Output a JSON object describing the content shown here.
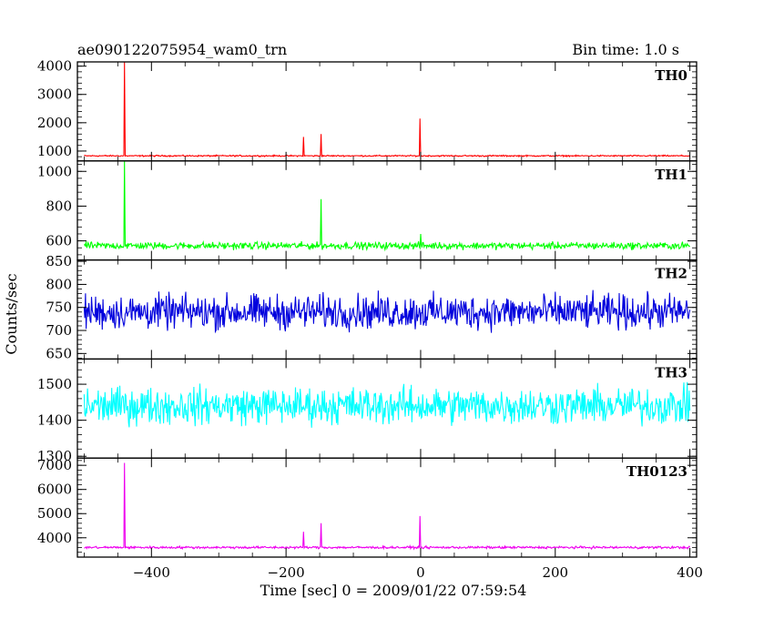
{
  "header": {
    "title": "ae090122075954_wam0_trn",
    "bin_time": "Bin time: 1.0 s"
  },
  "chart_data": {
    "type": "line",
    "xlabel": "Time [sec] 0 = 2009/01/22 07:59:54",
    "ylabel": "Counts/sec",
    "xlim": [
      -510,
      410
    ],
    "x_ticks": [
      -400,
      -200,
      0,
      200,
      400
    ],
    "x_tick_labels": [
      "−400",
      "−200",
      "0",
      "200",
      "400"
    ],
    "data_range": [
      -500,
      400
    ],
    "grid": false,
    "panels": [
      {
        "name": "TH0",
        "color": "#ff0000",
        "ylim": [
          650,
          4150
        ],
        "y_ticks": [
          1000,
          2000,
          3000,
          4000
        ],
        "y_tick_labels": [
          "1000",
          "2000",
          "3000",
          "4000"
        ],
        "baseline": 830,
        "noise": 35,
        "spikes": [
          {
            "x": -440,
            "y": 4150
          },
          {
            "x": -174,
            "y": 1500
          },
          {
            "x": -148,
            "y": 1600
          },
          {
            "x": -1,
            "y": 2150
          }
        ]
      },
      {
        "name": "TH1",
        "color": "#00ff00",
        "ylim": [
          490,
          1060
        ],
        "y_ticks": [
          600,
          800,
          1000
        ],
        "y_tick_labels": [
          "600",
          "800",
          "1000"
        ],
        "baseline": 572,
        "noise": 30,
        "spikes": [
          {
            "x": -440,
            "y": 1060
          },
          {
            "x": -148,
            "y": 840
          },
          {
            "x": 0,
            "y": 640
          }
        ]
      },
      {
        "name": "TH2",
        "color": "#0000dd",
        "ylim": [
          638,
          853
        ],
        "y_ticks": [
          650,
          700,
          750,
          800,
          850
        ],
        "y_tick_labels": [
          "650",
          "700",
          "750",
          "800",
          "850"
        ],
        "baseline": 740,
        "noise": 55,
        "spikes": []
      },
      {
        "name": "TH3",
        "color": "#00ffff",
        "ylim": [
          1295,
          1570
        ],
        "y_ticks": [
          1300,
          1400,
          1500
        ],
        "y_tick_labels": [
          "1300",
          "1400",
          "1500"
        ],
        "baseline": 1440,
        "noise": 75,
        "spikes": []
      },
      {
        "name": "TH0123",
        "color": "#ee00ee",
        "ylim": [
          3200,
          7300
        ],
        "y_ticks": [
          4000,
          5000,
          6000,
          7000
        ],
        "y_tick_labels": [
          "4000",
          "5000",
          "6000",
          "7000"
        ],
        "baseline": 3600,
        "noise": 70,
        "spikes": [
          {
            "x": -440,
            "y": 7100
          },
          {
            "x": -174,
            "y": 4250
          },
          {
            "x": -148,
            "y": 4600
          },
          {
            "x": -1,
            "y": 4900
          }
        ]
      }
    ]
  }
}
